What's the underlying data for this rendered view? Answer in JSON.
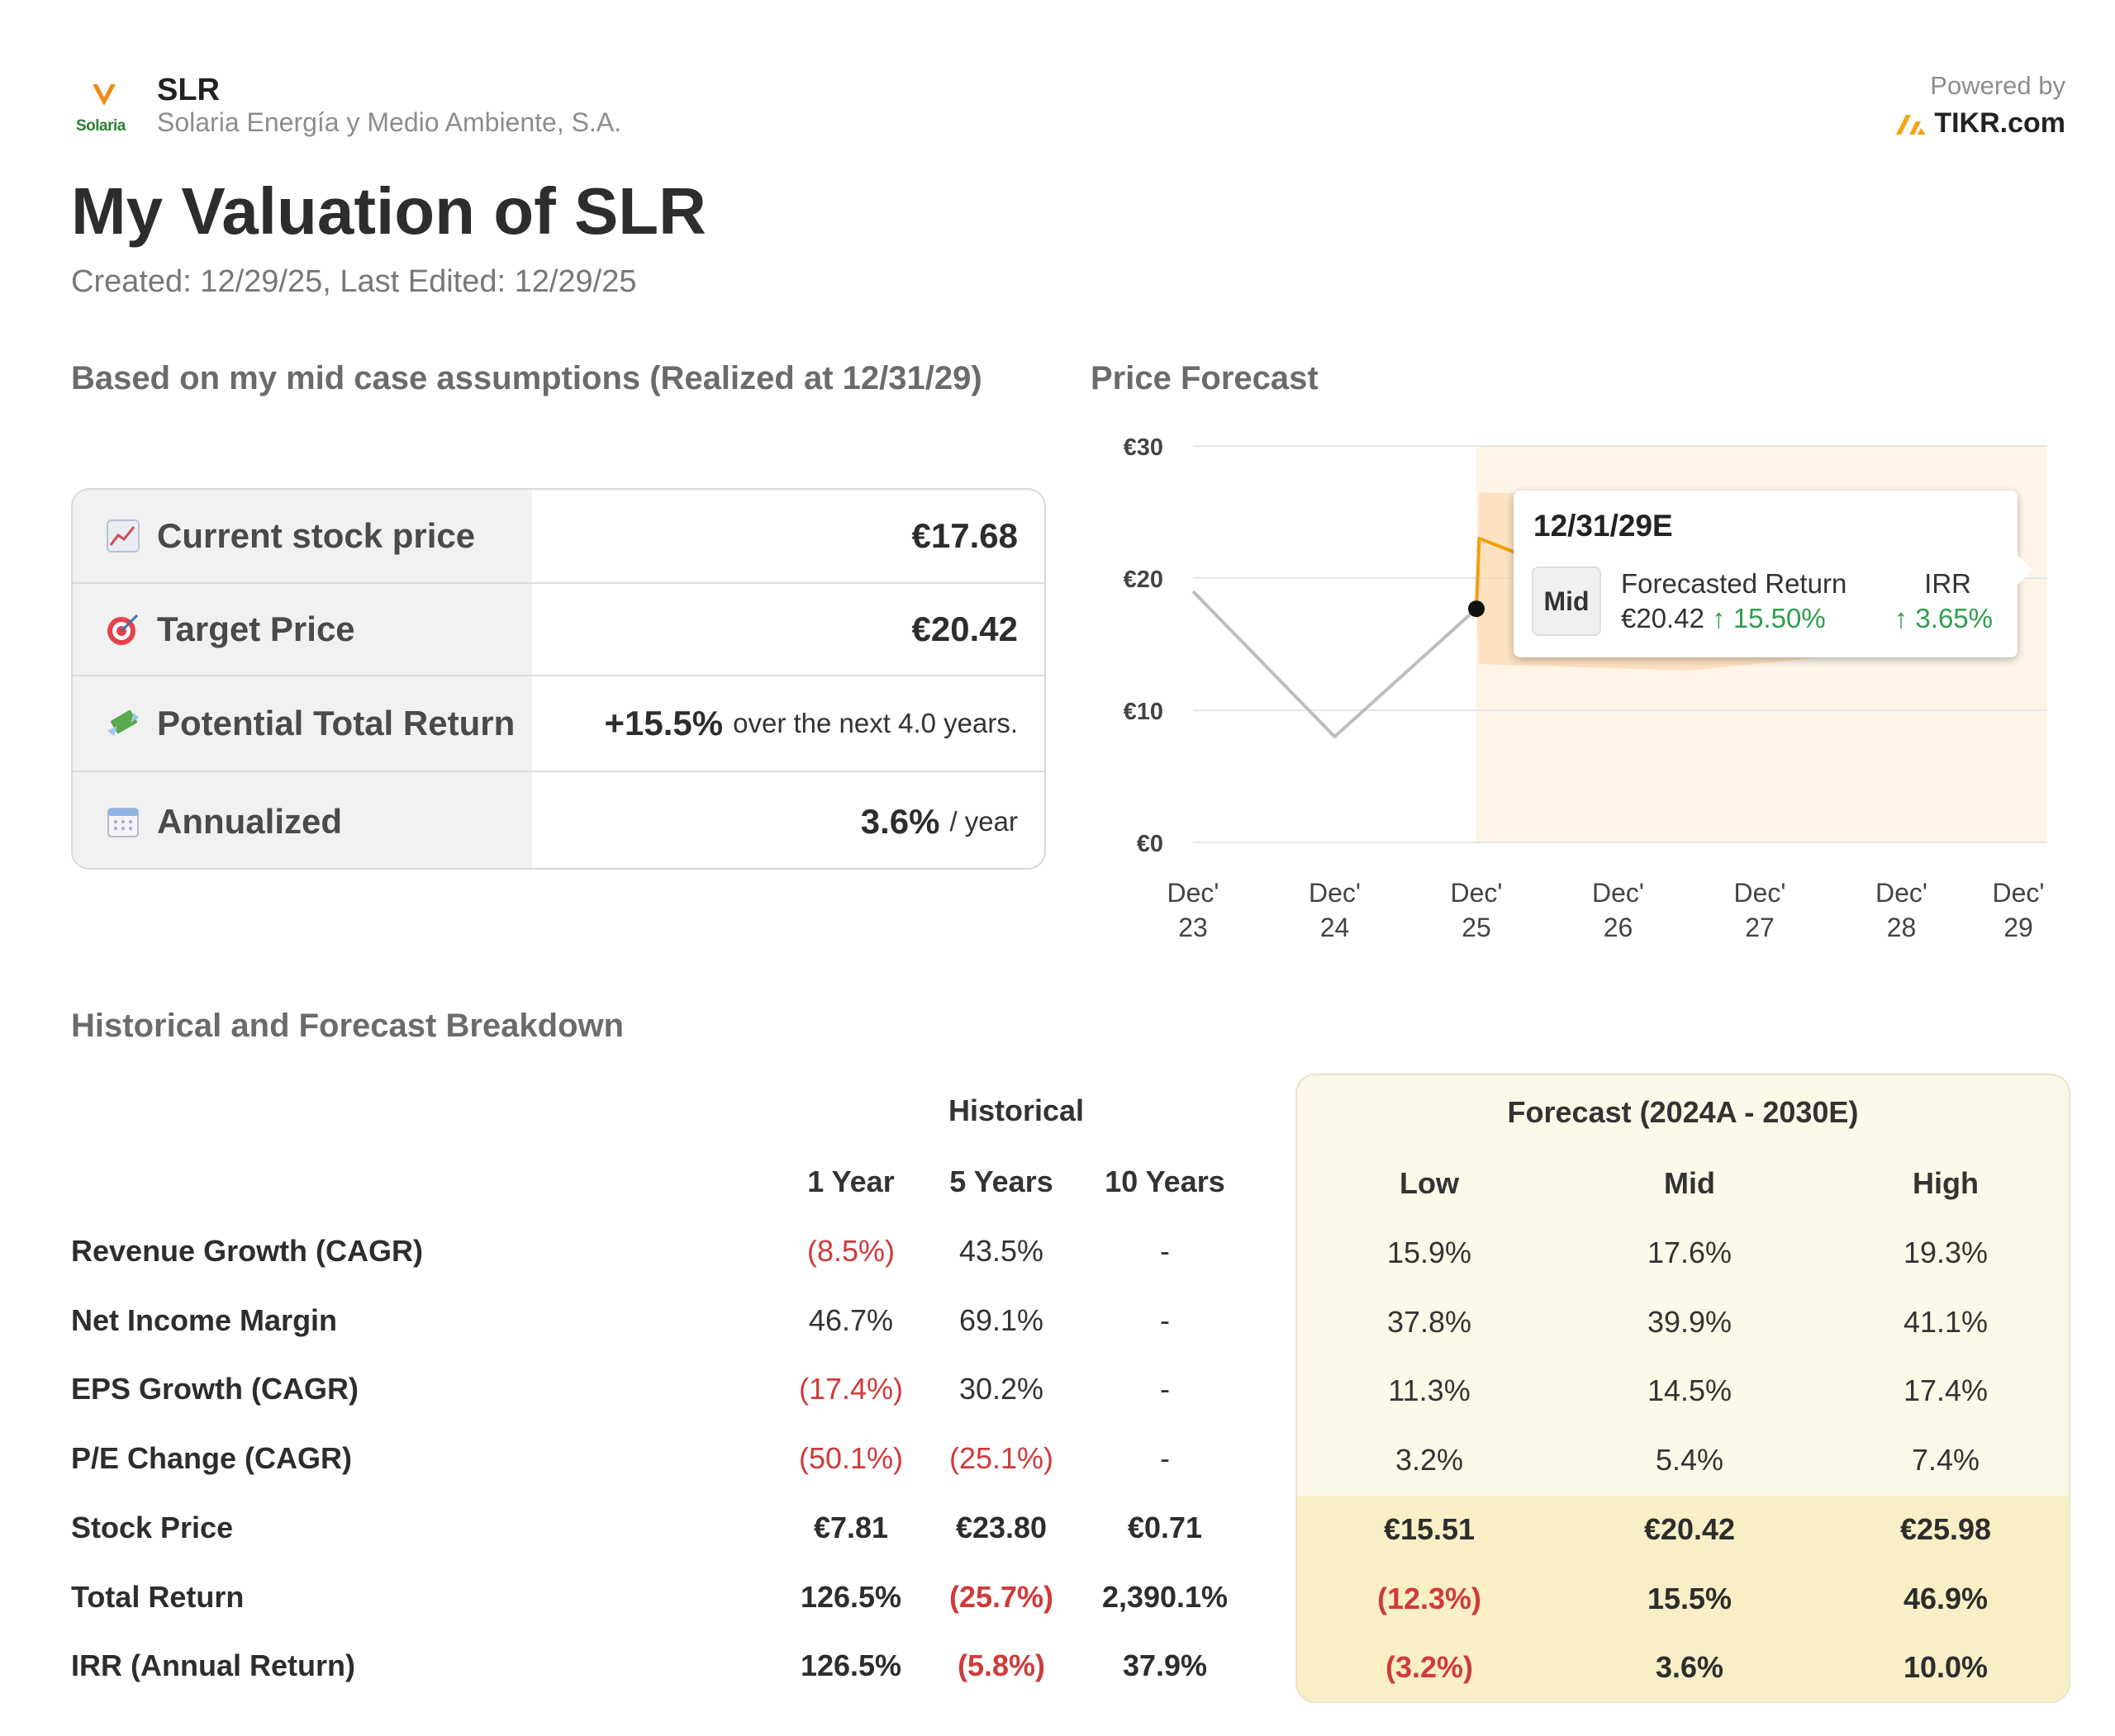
{
  "header": {
    "logo_text": "Solaria",
    "ticker": "SLR",
    "company": "Solaria Energía y Medio Ambiente, S.A.",
    "powered_by": "Powered by",
    "brand": "TIKR.com"
  },
  "title": "My Valuation of SLR",
  "created": "Created: 12/29/25, Last Edited: 12/29/25",
  "summary": {
    "heading": "Based on my mid case assumptions (Realized at 12/31/29)",
    "rows": [
      {
        "icon": "chart-increasing-icon",
        "label": "Current stock price",
        "value": "€17.68",
        "suffix": ""
      },
      {
        "icon": "target-icon",
        "label": "Target Price",
        "value": "€20.42",
        "suffix": ""
      },
      {
        "icon": "money-with-wings-icon",
        "label": "Potential Total Return",
        "value": "+15.5%",
        "suffix": "over the next 4.0 years."
      },
      {
        "icon": "calendar-icon",
        "label": "Annualized",
        "value": "3.6%",
        "suffix": "/ year"
      }
    ]
  },
  "forecast_chart": {
    "heading": "Price Forecast",
    "tooltip": {
      "date": "12/31/29E",
      "case": "Mid",
      "return_label": "Forecasted Return",
      "price": "€20.42",
      "return_value": "↑ 15.50%",
      "irr_label": "IRR",
      "irr_value": "↑ 3.65%"
    }
  },
  "chart_data": {
    "type": "line",
    "title": "Price Forecast",
    "x": [
      "Dec' 23",
      "Dec' 24",
      "Dec' 25",
      "Dec' 26",
      "Dec' 27",
      "Dec' 28",
      "Dec' 29"
    ],
    "x_ticks": [
      [
        "Dec'",
        "23"
      ],
      [
        "Dec'",
        "24"
      ],
      [
        "Dec'",
        "25"
      ],
      [
        "Dec'",
        "26"
      ],
      [
        "Dec'",
        "27"
      ],
      [
        "Dec'",
        "28"
      ],
      [
        "Dec'",
        "29"
      ]
    ],
    "y_ticks": [
      "€0",
      "€10",
      "€20",
      "€30"
    ],
    "ylim": [
      0,
      30
    ],
    "grid": true,
    "series": [
      {
        "kind": "historical",
        "color": "#bdbdbd",
        "points": [
          [
            0,
            19
          ],
          [
            1,
            8
          ],
          [
            2,
            17.68
          ]
        ]
      },
      {
        "kind": "forecast-mid",
        "color": "#f59e0b",
        "points": [
          [
            2,
            17.68
          ],
          [
            2.02,
            23
          ],
          [
            2.6,
            20.6
          ],
          [
            3.2,
            20.4
          ],
          [
            4.0,
            20.3
          ],
          [
            4.8,
            20.35
          ],
          [
            5.8,
            20.42
          ]
        ]
      }
    ],
    "band": {
      "low": [
        [
          2,
          17.68
        ],
        [
          2.02,
          13.5
        ],
        [
          3.5,
          13.0
        ],
        [
          5.8,
          15.51
        ]
      ],
      "high": [
        [
          2,
          17.68
        ],
        [
          2.02,
          26.5
        ],
        [
          3.5,
          26.0
        ],
        [
          5.8,
          25.98
        ]
      ]
    },
    "forecast_start_x": 2,
    "highlight_point": [
      2,
      17.68
    ]
  },
  "breakdown": {
    "heading": "Historical and Forecast Breakdown",
    "historical_label": "Historical",
    "forecast_label": "Forecast (2024A - 2030E)",
    "columns": [
      "1 Year",
      "5 Years",
      "10 Years",
      "Low",
      "Mid",
      "High"
    ],
    "rows": [
      {
        "label": "Revenue Growth (CAGR)",
        "values": [
          "(8.5%)",
          "43.5%",
          "-",
          "15.9%",
          "17.6%",
          "19.3%"
        ],
        "bold": false
      },
      {
        "label": "Net Income Margin",
        "values": [
          "46.7%",
          "69.1%",
          "-",
          "37.8%",
          "39.9%",
          "41.1%"
        ],
        "bold": false
      },
      {
        "label": "EPS Growth (CAGR)",
        "values": [
          "(17.4%)",
          "30.2%",
          "-",
          "11.3%",
          "14.5%",
          "17.4%"
        ],
        "bold": false
      },
      {
        "label": "P/E Change (CAGR)",
        "values": [
          "(50.1%)",
          "(25.1%)",
          "-",
          "3.2%",
          "5.4%",
          "7.4%"
        ],
        "bold": false
      },
      {
        "label": "Stock Price",
        "values": [
          "€7.81",
          "€23.80",
          "€0.71",
          "€15.51",
          "€20.42",
          "€25.98"
        ],
        "bold": true
      },
      {
        "label": "Total Return",
        "values": [
          "126.5%",
          "(25.7%)",
          "2,390.1%",
          "(12.3%)",
          "15.5%",
          "46.9%"
        ],
        "bold": true
      },
      {
        "label": "IRR (Annual Return)",
        "values": [
          "126.5%",
          "(5.8%)",
          "37.9%",
          "(3.2%)",
          "3.6%",
          "10.0%"
        ],
        "bold": true
      }
    ]
  },
  "colors": {
    "negative": "#d03a3a",
    "positive": "#2e9e4f",
    "accent": "#f59e0b",
    "forecast_bg": "#fdf9e8"
  }
}
